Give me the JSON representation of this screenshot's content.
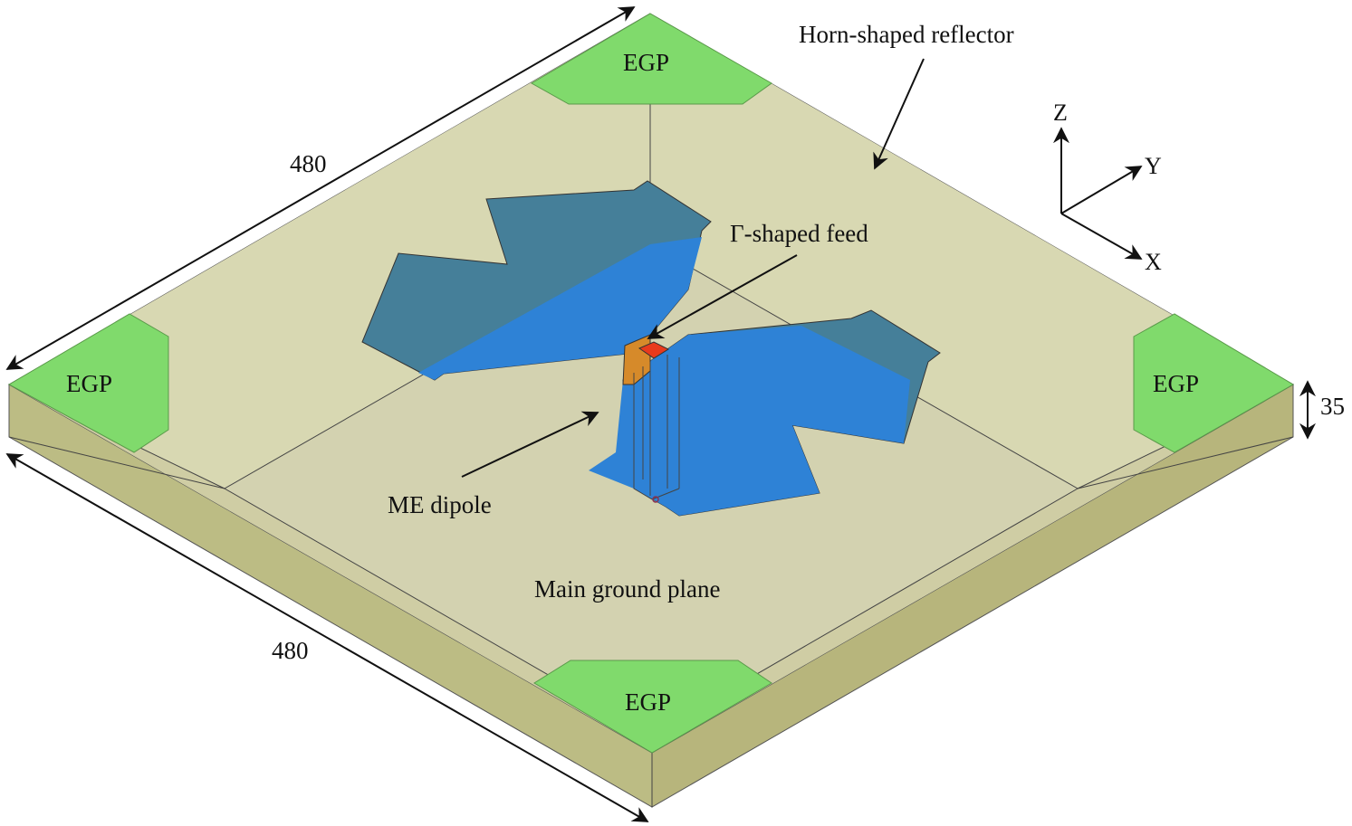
{
  "labels": {
    "horn_reflector": "Horn-shaped reflector",
    "feed": "Γ-shaped feed",
    "me_dipole": "ME dipole",
    "main_ground": "Main ground plane",
    "egp": "EGP",
    "dim_top": "480",
    "dim_bottom": "480",
    "dim_height": "35"
  },
  "axes": {
    "z": "Z",
    "y": "Y",
    "x": "X"
  },
  "colors": {
    "ground": "#d3d2b0",
    "reflector_slope": "#dcdcb4",
    "side_left": "#bcbc84",
    "side_right": "#b7b57c",
    "egp": "#80da6c",
    "patch_back": "#457f99",
    "patch_front": "#2e82d6",
    "feed": "#e83a1c",
    "feed_strip": "#d68a2a"
  }
}
